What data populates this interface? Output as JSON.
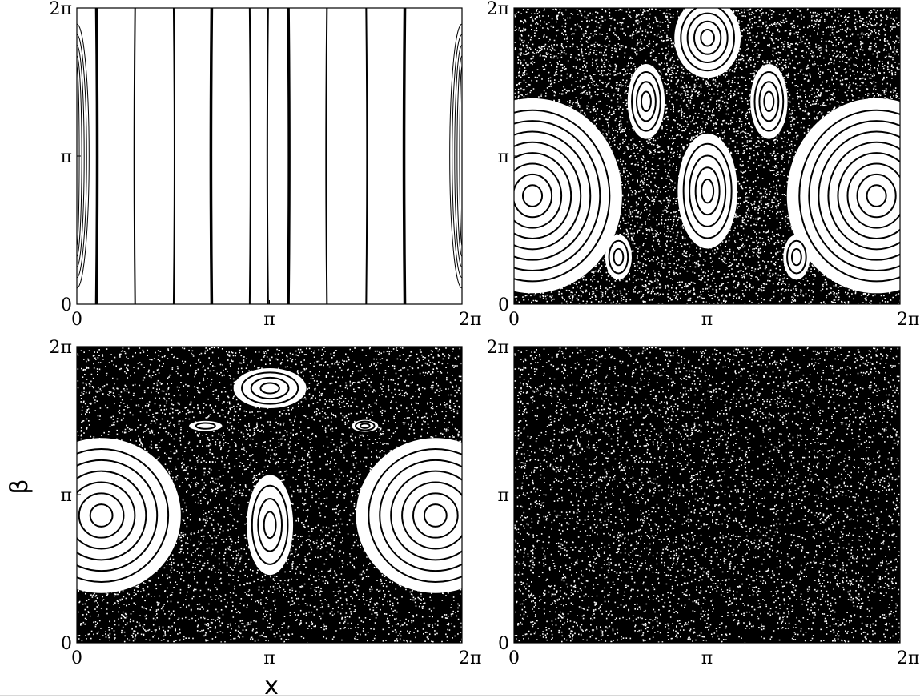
{
  "figure": {
    "xlabel": "x",
    "ylabel": "β",
    "colors": {
      "ink": "#000000",
      "paper": "#ffffff"
    }
  },
  "chart_data": [
    {
      "type": "scatter",
      "panel": "top-left",
      "regime": "regular",
      "xlim": [
        0,
        6.2832
      ],
      "ylim": [
        0,
        6.2832
      ],
      "x_ticks": [
        "0",
        "π",
        "2π"
      ],
      "y_ticks": [
        "0",
        "π",
        "2π"
      ],
      "vertical_orbit_x": [
        0.32,
        0.95,
        1.58,
        2.2,
        2.82,
        3.12,
        3.45,
        4.08,
        4.72,
        5.35
      ],
      "edge_island": {
        "center": [
          0.0,
          3.1416
        ],
        "half_width": 0.1,
        "half_height": 2.8
      },
      "grid": false
    },
    {
      "type": "scatter",
      "panel": "top-right",
      "regime": "mixed",
      "xlim": [
        0,
        6.2832
      ],
      "ylim": [
        0,
        6.2832
      ],
      "x_ticks": [
        "0",
        "π",
        "2π"
      ],
      "y_ticks": [
        "0",
        "π",
        "2π"
      ],
      "islands": [
        {
          "cx": 0.3,
          "cy": 2.3,
          "rx": 1.35,
          "ry": 1.95,
          "rings": 8
        },
        {
          "cx": 5.9,
          "cy": 2.3,
          "rx": 1.35,
          "ry": 1.95,
          "rings": 8
        },
        {
          "cx": 3.15,
          "cy": 2.4,
          "rx": 0.45,
          "ry": 1.15,
          "rings": 4
        },
        {
          "cx": 3.15,
          "cy": 5.65,
          "rx": 0.5,
          "ry": 0.8,
          "rings": 4
        },
        {
          "cx": 2.15,
          "cy": 4.3,
          "rx": 0.28,
          "ry": 0.75,
          "rings": 3
        },
        {
          "cx": 4.15,
          "cy": 4.3,
          "rx": 0.28,
          "ry": 0.75,
          "rings": 3
        },
        {
          "cx": 1.7,
          "cy": 1.0,
          "rx": 0.2,
          "ry": 0.45,
          "rings": 2
        },
        {
          "cx": 4.6,
          "cy": 1.0,
          "rx": 0.2,
          "ry": 0.45,
          "rings": 2
        }
      ],
      "chaos_density": 0.5,
      "grid": false
    },
    {
      "type": "scatter",
      "panel": "bottom-left",
      "regime": "mostly chaotic",
      "xlim": [
        0,
        6.2832
      ],
      "ylim": [
        0,
        6.2832
      ],
      "x_ticks": [
        "0",
        "π",
        "2π"
      ],
      "y_ticks": [
        "0",
        "π",
        "2π"
      ],
      "islands": [
        {
          "cx": 0.4,
          "cy": 2.7,
          "rx": 1.2,
          "ry": 1.55,
          "rings": 6
        },
        {
          "cx": 5.85,
          "cy": 2.7,
          "rx": 1.2,
          "ry": 1.55,
          "rings": 6
        },
        {
          "cx": 3.15,
          "cy": 2.5,
          "rx": 0.35,
          "ry": 1.0,
          "rings": 3
        },
        {
          "cx": 3.15,
          "cy": 5.4,
          "rx": 0.55,
          "ry": 0.4,
          "rings": 3
        },
        {
          "cx": 4.7,
          "cy": 4.6,
          "rx": 0.2,
          "ry": 0.12,
          "rings": 2
        },
        {
          "cx": 2.1,
          "cy": 4.6,
          "rx": 0.25,
          "ry": 0.1,
          "rings": 1
        }
      ],
      "chaos_density": 0.56,
      "grid": false
    },
    {
      "type": "scatter",
      "panel": "bottom-right",
      "regime": "fully chaotic",
      "xlim": [
        0,
        6.2832
      ],
      "ylim": [
        0,
        6.2832
      ],
      "x_ticks": [
        "0",
        "π",
        "2π"
      ],
      "y_ticks": [
        "0",
        "π",
        "2π"
      ],
      "islands": [],
      "chaos_density": 0.6,
      "grid": false
    }
  ]
}
